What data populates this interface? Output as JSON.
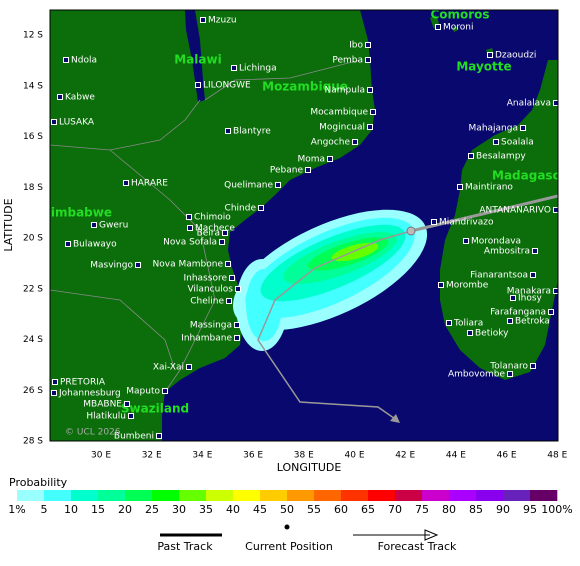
{
  "map": {
    "x_axis_label": "LONGITUDE",
    "y_axis_label": "LATITUDE",
    "lon_ticks": [
      "30 E",
      "32 E",
      "34 E",
      "36 E",
      "38 E",
      "40 E",
      "42 E",
      "44 E",
      "46 E",
      "48 E"
    ],
    "lat_ticks": [
      "12 S",
      "14 S",
      "16 S",
      "18 S",
      "20 S",
      "22 S",
      "24 S",
      "26 S",
      "28 S"
    ],
    "regions": [
      "Comoros",
      "Malawi",
      "Mozambique",
      "Mayotte",
      "Madagascar",
      "Zimbabwe",
      "Swaziland"
    ],
    "places": [
      "Mzuzu",
      "Moroni",
      "Ndola",
      "Lichinga",
      "Ibo",
      "Pemba",
      "Dzaoudzi",
      "Kabwe",
      "LILONGWE",
      "Nampula",
      "Analalava",
      "LUSAKA",
      "Mocambique",
      "Mogincual",
      "Mahajanga",
      "Blantyre",
      "Angoche",
      "Soalala",
      "Besalampy",
      "Moma",
      "Pebane",
      "HARARE",
      "Quelimane",
      "Maintirano",
      "Chinde",
      "ANTANANARIVO",
      "Chimoio",
      "Machece",
      "Miandrivazo",
      "Gweru",
      "Beira",
      "Nova Sofala",
      "Morondava",
      "Bulawayo",
      "Ambositra",
      "Masvingo",
      "Nova Mambone",
      "Fianarantsoa",
      "Inhassore",
      "Morombe",
      "Vilanculos",
      "Manakara",
      "Ihosy",
      "Cheline",
      "Farafangana",
      "Betroka",
      "Toliara",
      "Massinga",
      "Betioky",
      "Inhambane",
      "Tolanaro",
      "Xai-Xai",
      "Ambovombe",
      "PRETORIA",
      "Johannesburg",
      "Maputo",
      "MBABNE",
      "Hlatikulu",
      "Bumbeni"
    ],
    "copyright": "© UCL 2026"
  },
  "legend": {
    "title": "Probability",
    "labels": [
      "1%",
      "5",
      "10",
      "15",
      "20",
      "25",
      "30",
      "35",
      "40",
      "45",
      "50",
      "55",
      "60",
      "65",
      "70",
      "75",
      "80",
      "85",
      "90",
      "95",
      "100%"
    ],
    "colors": [
      "#99ffff",
      "#44ffff",
      "#00ffcc",
      "#00ff99",
      "#00ff55",
      "#00ff00",
      "#66ff00",
      "#ccff00",
      "#ffff00",
      "#ffcc00",
      "#ff9900",
      "#ff6600",
      "#ff3300",
      "#ff0000",
      "#cc0044",
      "#cc00cc",
      "#aa00ff",
      "#8800ee",
      "#6622bb",
      "#660066"
    ],
    "tracks": [
      "Past Track",
      "Current Position",
      "Forecast Track"
    ]
  }
}
